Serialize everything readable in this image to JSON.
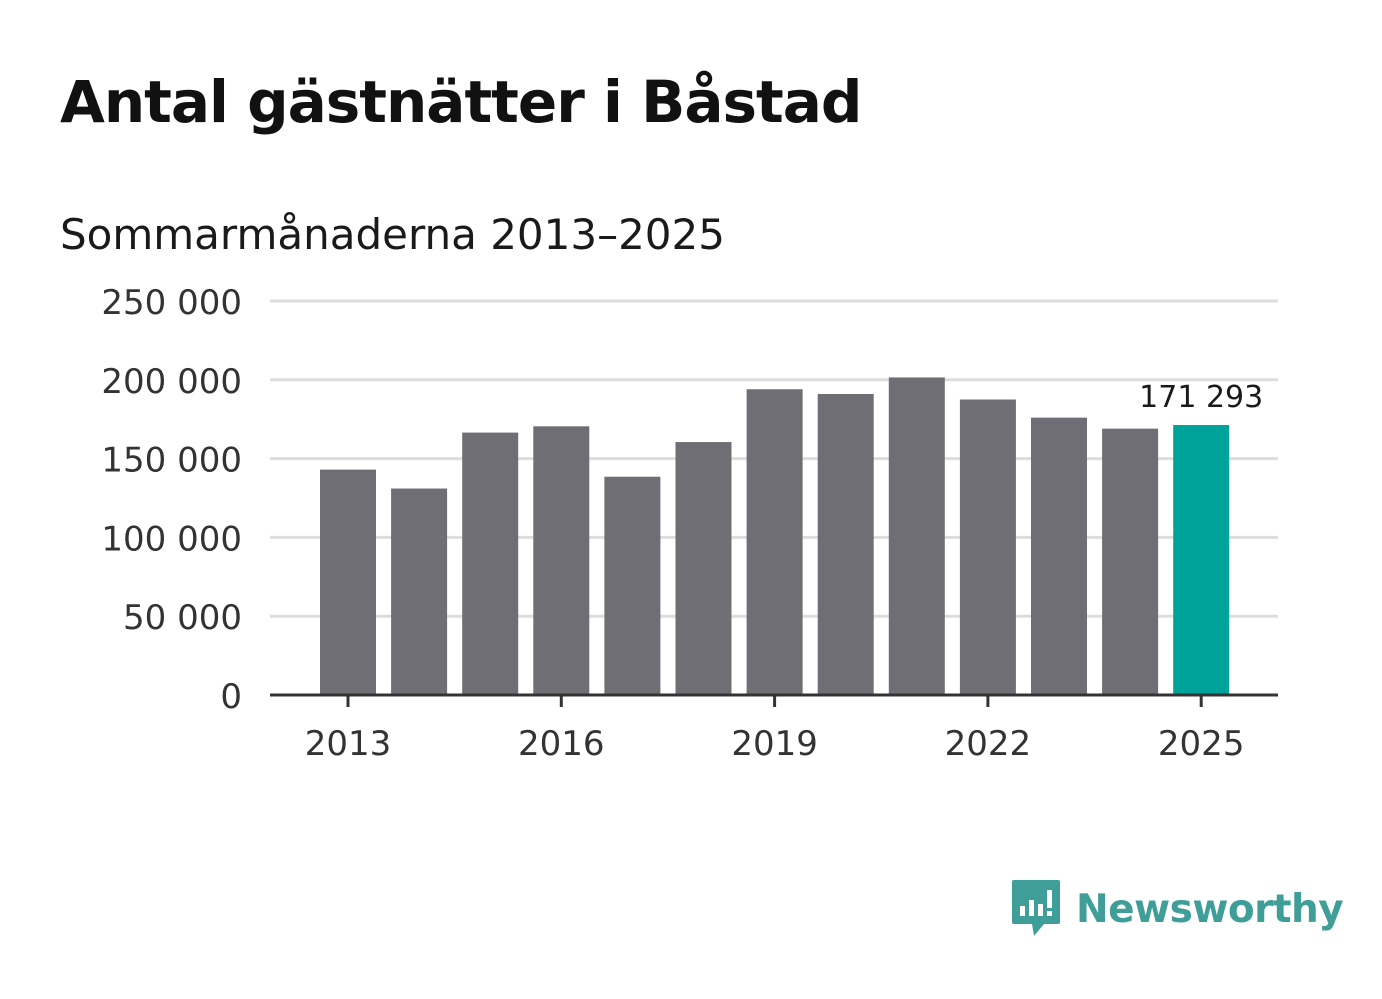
{
  "title": "Antal gästnätter i Båstad",
  "subtitle": "Sommarmånaderna 2013–2025",
  "brand": {
    "name": "Newsworthy",
    "color": "#3f9e98",
    "icon": "newsworthy-logo-icon"
  },
  "chart_data": {
    "type": "bar",
    "categories": [
      "2013",
      "2014",
      "2015",
      "2016",
      "2017",
      "2018",
      "2019",
      "2020",
      "2021",
      "2022",
      "2023",
      "2024",
      "2025"
    ],
    "values": [
      143000,
      131000,
      166500,
      170500,
      138500,
      160500,
      194000,
      191000,
      201500,
      187500,
      176000,
      169000,
      171293
    ],
    "ylim": [
      0,
      250000
    ],
    "yticks": [
      0,
      50000,
      100000,
      150000,
      200000,
      250000
    ],
    "ytick_labels": [
      "0",
      "50 000",
      "100 000",
      "150 000",
      "200 000",
      "250 000"
    ],
    "xtick_labels": [
      "2013",
      "2016",
      "2019",
      "2022",
      "2025"
    ],
    "highlight_label": "171 293",
    "highlight_index": 12,
    "grid": true,
    "colors": {
      "bar": "#6f6e74",
      "highlight": "#00a39a",
      "grid": "#dddddd",
      "axis": "#333333"
    }
  }
}
